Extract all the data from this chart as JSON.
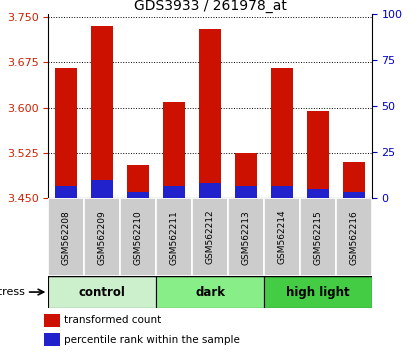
{
  "title": "GDS3933 / 261978_at",
  "samples": [
    "GSM562208",
    "GSM562209",
    "GSM562210",
    "GSM562211",
    "GSM562212",
    "GSM562213",
    "GSM562214",
    "GSM562215",
    "GSM562216"
  ],
  "red_values": [
    3.665,
    3.735,
    3.505,
    3.61,
    3.73,
    3.525,
    3.665,
    3.595,
    3.51
  ],
  "blue_values": [
    0.02,
    0.03,
    0.01,
    0.02,
    0.025,
    0.02,
    0.02,
    0.015,
    0.01
  ],
  "baseline": 3.45,
  "groups": [
    {
      "label": "control",
      "start": 0,
      "end": 3,
      "color": "#ccf0cc"
    },
    {
      "label": "dark",
      "start": 3,
      "end": 6,
      "color": "#88ee88"
    },
    {
      "label": "high light",
      "start": 6,
      "end": 9,
      "color": "#44cc44"
    }
  ],
  "ylim_left": [
    3.45,
    3.755
  ],
  "ylim_right": [
    0,
    100
  ],
  "yticks_left": [
    3.45,
    3.525,
    3.6,
    3.675,
    3.75
  ],
  "yticks_right": [
    0,
    25,
    50,
    75,
    100
  ],
  "left_color": "#cc2200",
  "right_color": "#0000cc",
  "bar_width": 0.6,
  "red_color": "#cc1100",
  "blue_color": "#2222cc"
}
